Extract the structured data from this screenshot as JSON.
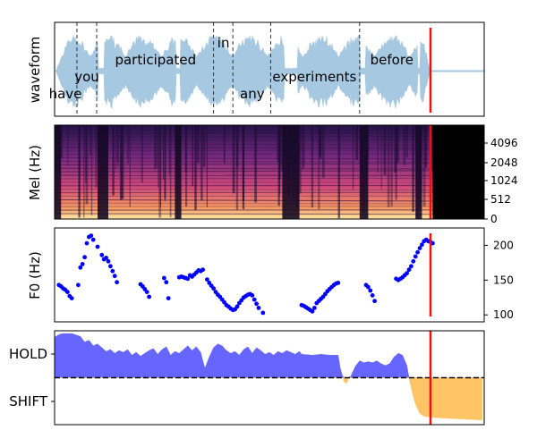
{
  "chart_data": [
    {
      "type": "area",
      "panel": "waveform",
      "ylabel": "waveform",
      "x_range": [
        0,
        1
      ],
      "words": [
        {
          "text": "have",
          "x": 0.025
        },
        {
          "text": "you",
          "x": 0.075
        },
        {
          "text": "participated",
          "x": 0.235
        },
        {
          "text": "in",
          "x": 0.393
        },
        {
          "text": "any",
          "x": 0.46
        },
        {
          "text": "experiments",
          "x": 0.605
        },
        {
          "text": "before",
          "x": 0.785
        }
      ],
      "word_boundaries": [
        0.052,
        0.098,
        0.37,
        0.415,
        0.503,
        0.71
      ],
      "current_position": 0.875,
      "waveform_color": "#a6c8e0",
      "boundary_color": "#333333",
      "marker_color": "#ee1111"
    },
    {
      "type": "heatmap",
      "panel": "mel",
      "ylabel": "Mel (Hz)",
      "yticks": [
        "0",
        "512",
        "1024",
        "2048",
        "4096"
      ],
      "x_range": [
        0,
        1
      ],
      "active_until": 0.88,
      "current_position": 0.875,
      "silence_segments": [
        [
          0.0,
          0.015
        ],
        [
          0.1,
          0.125
        ],
        [
          0.28,
          0.295
        ],
        [
          0.53,
          0.57
        ],
        [
          0.71,
          0.73
        ],
        [
          0.84,
          0.855
        ]
      ]
    },
    {
      "type": "scatter",
      "panel": "f0",
      "ylabel": "F0 (Hz)",
      "yticks": [
        100,
        150,
        200
      ],
      "ylim": [
        90,
        225
      ],
      "x_range": [
        0,
        1
      ],
      "current_position": 0.875,
      "point_color": "#0000ff",
      "points": [
        [
          0.01,
          143
        ],
        [
          0.015,
          141
        ],
        [
          0.02,
          138
        ],
        [
          0.025,
          136
        ],
        [
          0.03,
          133
        ],
        [
          0.035,
          127
        ],
        [
          0.04,
          124
        ],
        [
          0.055,
          143
        ],
        [
          0.06,
          168
        ],
        [
          0.065,
          173
        ],
        [
          0.07,
          183
        ],
        [
          0.075,
          203
        ],
        [
          0.08,
          212
        ],
        [
          0.085,
          214
        ],
        [
          0.09,
          208
        ],
        [
          0.1,
          198
        ],
        [
          0.11,
          186
        ],
        [
          0.115,
          180
        ],
        [
          0.12,
          182
        ],
        [
          0.125,
          177
        ],
        [
          0.13,
          170
        ],
        [
          0.135,
          163
        ],
        [
          0.14,
          156
        ],
        [
          0.145,
          147
        ],
        [
          0.2,
          144
        ],
        [
          0.205,
          141
        ],
        [
          0.21,
          137
        ],
        [
          0.215,
          133
        ],
        [
          0.22,
          126
        ],
        [
          0.255,
          153
        ],
        [
          0.26,
          147
        ],
        [
          0.265,
          124
        ],
        [
          0.29,
          154
        ],
        [
          0.295,
          155
        ],
        [
          0.3,
          154
        ],
        [
          0.305,
          153
        ],
        [
          0.31,
          152
        ],
        [
          0.315,
          157
        ],
        [
          0.32,
          155
        ],
        [
          0.325,
          158
        ],
        [
          0.33,
          161
        ],
        [
          0.335,
          164
        ],
        [
          0.34,
          163
        ],
        [
          0.345,
          165
        ],
        [
          0.355,
          151
        ],
        [
          0.36,
          146
        ],
        [
          0.365,
          142
        ],
        [
          0.37,
          138
        ],
        [
          0.375,
          133
        ],
        [
          0.38,
          129
        ],
        [
          0.385,
          126
        ],
        [
          0.39,
          122
        ],
        [
          0.395,
          118
        ],
        [
          0.4,
          114
        ],
        [
          0.405,
          112
        ],
        [
          0.41,
          109
        ],
        [
          0.415,
          107
        ],
        [
          0.42,
          108
        ],
        [
          0.425,
          112
        ],
        [
          0.43,
          117
        ],
        [
          0.435,
          121
        ],
        [
          0.44,
          125
        ],
        [
          0.445,
          127
        ],
        [
          0.45,
          129
        ],
        [
          0.455,
          130
        ],
        [
          0.46,
          128
        ],
        [
          0.465,
          122
        ],
        [
          0.47,
          116
        ],
        [
          0.475,
          110
        ],
        [
          0.485,
          103
        ],
        [
          0.575,
          114
        ],
        [
          0.58,
          113
        ],
        [
          0.585,
          111
        ],
        [
          0.59,
          109
        ],
        [
          0.595,
          107
        ],
        [
          0.6,
          105
        ],
        [
          0.605,
          110
        ],
        [
          0.61,
          117
        ],
        [
          0.615,
          120
        ],
        [
          0.62,
          123
        ],
        [
          0.625,
          126
        ],
        [
          0.63,
          130
        ],
        [
          0.635,
          134
        ],
        [
          0.64,
          137
        ],
        [
          0.645,
          140
        ],
        [
          0.65,
          143
        ],
        [
          0.655,
          145
        ],
        [
          0.66,
          146
        ],
        [
          0.725,
          143
        ],
        [
          0.73,
          140
        ],
        [
          0.735,
          135
        ],
        [
          0.74,
          128
        ],
        [
          0.745,
          120
        ],
        [
          0.795,
          152
        ],
        [
          0.8,
          150
        ],
        [
          0.805,
          152
        ],
        [
          0.81,
          154
        ],
        [
          0.815,
          157
        ],
        [
          0.82,
          160
        ],
        [
          0.825,
          165
        ],
        [
          0.83,
          170
        ],
        [
          0.835,
          177
        ],
        [
          0.84,
          184
        ],
        [
          0.845,
          190
        ],
        [
          0.85,
          196
        ],
        [
          0.855,
          201
        ],
        [
          0.86,
          206
        ],
        [
          0.865,
          208
        ],
        [
          0.87,
          206
        ],
        [
          0.875,
          205
        ],
        [
          0.88,
          203
        ]
      ]
    },
    {
      "type": "area",
      "panel": "turn-taking",
      "yticks": [
        "HOLD",
        "SHIFT"
      ],
      "x_range": [
        0,
        1
      ],
      "threshold": 0.5,
      "current_position": 0.875,
      "hold_color": "#6666ff",
      "shift_color": "#ffc466",
      "threshold_color": "#000000",
      "values": [
        [
          0.0,
          0.93
        ],
        [
          0.01,
          0.96
        ],
        [
          0.02,
          0.97
        ],
        [
          0.04,
          0.97
        ],
        [
          0.06,
          0.94
        ],
        [
          0.07,
          0.88
        ],
        [
          0.08,
          0.9
        ],
        [
          0.09,
          0.84
        ],
        [
          0.1,
          0.86
        ],
        [
          0.11,
          0.82
        ],
        [
          0.12,
          0.78
        ],
        [
          0.13,
          0.8
        ],
        [
          0.14,
          0.76
        ],
        [
          0.15,
          0.79
        ],
        [
          0.16,
          0.77
        ],
        [
          0.17,
          0.8
        ],
        [
          0.18,
          0.74
        ],
        [
          0.19,
          0.77
        ],
        [
          0.2,
          0.73
        ],
        [
          0.21,
          0.76
        ],
        [
          0.22,
          0.79
        ],
        [
          0.23,
          0.81
        ],
        [
          0.24,
          0.75
        ],
        [
          0.25,
          0.8
        ],
        [
          0.26,
          0.83
        ],
        [
          0.27,
          0.74
        ],
        [
          0.28,
          0.78
        ],
        [
          0.29,
          0.76
        ],
        [
          0.3,
          0.8
        ],
        [
          0.31,
          0.84
        ],
        [
          0.32,
          0.79
        ],
        [
          0.33,
          0.83
        ],
        [
          0.34,
          0.77
        ],
        [
          0.345,
          0.68
        ],
        [
          0.35,
          0.6
        ],
        [
          0.36,
          0.72
        ],
        [
          0.37,
          0.82
        ],
        [
          0.38,
          0.86
        ],
        [
          0.39,
          0.84
        ],
        [
          0.4,
          0.79
        ],
        [
          0.41,
          0.76
        ],
        [
          0.42,
          0.78
        ],
        [
          0.43,
          0.74
        ],
        [
          0.44,
          0.8
        ],
        [
          0.45,
          0.83
        ],
        [
          0.46,
          0.76
        ],
        [
          0.47,
          0.82
        ],
        [
          0.48,
          0.79
        ],
        [
          0.49,
          0.75
        ],
        [
          0.5,
          0.77
        ],
        [
          0.51,
          0.74
        ],
        [
          0.52,
          0.78
        ],
        [
          0.53,
          0.76
        ],
        [
          0.54,
          0.79
        ],
        [
          0.55,
          0.77
        ],
        [
          0.56,
          0.75
        ],
        [
          0.57,
          0.78
        ],
        [
          0.575,
          0.75
        ],
        [
          0.6,
          0.74
        ],
        [
          0.62,
          0.75
        ],
        [
          0.64,
          0.74
        ],
        [
          0.66,
          0.74
        ],
        [
          0.665,
          0.6
        ],
        [
          0.67,
          0.52
        ],
        [
          0.675,
          0.45
        ],
        [
          0.68,
          0.44
        ],
        [
          0.685,
          0.5
        ],
        [
          0.69,
          0.52
        ],
        [
          0.7,
          0.62
        ],
        [
          0.71,
          0.68
        ],
        [
          0.72,
          0.66
        ],
        [
          0.73,
          0.67
        ],
        [
          0.74,
          0.66
        ],
        [
          0.75,
          0.68
        ],
        [
          0.76,
          0.65
        ],
        [
          0.77,
          0.63
        ],
        [
          0.78,
          0.65
        ],
        [
          0.79,
          0.72
        ],
        [
          0.8,
          0.76
        ],
        [
          0.81,
          0.74
        ],
        [
          0.82,
          0.63
        ],
        [
          0.825,
          0.5
        ],
        [
          0.83,
          0.4
        ],
        [
          0.835,
          0.3
        ],
        [
          0.84,
          0.22
        ],
        [
          0.85,
          0.12
        ],
        [
          0.86,
          0.09
        ],
        [
          0.875,
          0.08
        ],
        [
          0.9,
          0.07
        ],
        [
          0.95,
          0.06
        ],
        [
          0.995,
          0.05
        ]
      ]
    }
  ]
}
